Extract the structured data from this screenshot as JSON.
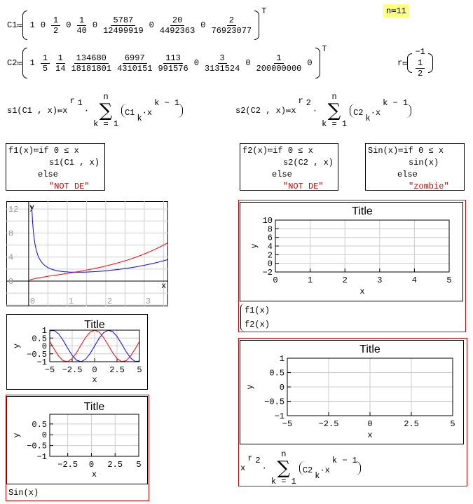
{
  "assign": "≔",
  "n_def": {
    "name": "n",
    "value": "11"
  },
  "c1": {
    "name": "C1",
    "transpose": "T",
    "entries": [
      "1",
      "0",
      {
        "num": "1",
        "den": "2"
      },
      "0",
      {
        "num": "1",
        "den": "40"
      },
      "0",
      {
        "num": "5787",
        "den": "12499919"
      },
      "0",
      {
        "num": "20",
        "den": "4492363"
      },
      "0",
      {
        "num": "2",
        "den": "76923077"
      }
    ]
  },
  "c2": {
    "name": "C2",
    "transpose": "T",
    "entries": [
      "1",
      {
        "num": "1",
        "den": "5"
      },
      {
        "num": "1",
        "den": "14"
      },
      {
        "num": "134680",
        "den": "18181801"
      },
      {
        "num": "6997",
        "den": "4310151"
      },
      {
        "num": "113",
        "den": "991576"
      },
      "0",
      {
        "num": "3",
        "den": "3131524"
      },
      "0",
      {
        "num": "1",
        "den": "200000000"
      },
      "0"
    ]
  },
  "r": {
    "name": "r",
    "entries": [
      "−1",
      {
        "num": "1",
        "den": "2"
      }
    ]
  },
  "s1": {
    "lhs": "s1(C1 , x)",
    "base": "x",
    "exp_var": "r",
    "exp_idx": "1",
    "dot": "·",
    "sum_top": "n",
    "sum_bottom": "k = 1",
    "term_var": "C1",
    "term_idx": "k",
    "term_base": "x",
    "term_exp": "k − 1"
  },
  "s2": {
    "lhs": "s2(C2 , x)",
    "base": "x",
    "exp_var": "r",
    "exp_idx": "2",
    "dot": "·",
    "sum_top": "n",
    "sum_bottom": "k = 1",
    "term_var": "C2",
    "term_idx": "k",
    "term_base": "x",
    "term_exp": "k − 1"
  },
  "expr_result": {
    "base": "x",
    "exp_var": "r",
    "exp_idx": "2",
    "dot": "·",
    "sum_top": "n",
    "sum_bottom": "k = 1",
    "term_var": "C2",
    "term_idx": "k",
    "term_base": "x",
    "term_exp": "k − 1"
  },
  "f1": {
    "lhs": "f1(x)",
    "keyword": "if",
    "cond": "0 ≤ x",
    "value": "s1(C1 , x)",
    "else": "else",
    "alt": "\"NOT DE\""
  },
  "f2": {
    "lhs": "f2(x)",
    "keyword": "if",
    "cond": "0 ≤ x",
    "value": "s2(C2 , x)",
    "else": "else",
    "alt": "\"NOT DE\""
  },
  "sinfn": {
    "lhs": "Sin(x)",
    "keyword": "if",
    "cond": "0 ≤ x",
    "value": "sin(x)",
    "else": "else",
    "alt": "\"zombie\""
  },
  "plot4_legend": [
    "f1(x)",
    "f2(x)"
  ],
  "plot3_expr": "Sin(x)",
  "chart_data": [
    {
      "type": "line",
      "xlabel": "x",
      "ylabel": "y",
      "xlim": [
        -0.58,
        3.62
      ],
      "ylim": [
        -4.2,
        13.3
      ],
      "xticks": [
        "0",
        "1",
        "2",
        "3"
      ],
      "yticks": [
        "0",
        "4",
        "8",
        "12"
      ],
      "grid": true,
      "series": [
        {
          "color": "#0000ff",
          "defined_by": "f1"
        },
        {
          "color": "#ff0000",
          "defined_by": "f2"
        }
      ]
    },
    {
      "type": "line",
      "title": "Title",
      "xlabel": "x",
      "ylabel": "y",
      "xlim": [
        -5,
        5
      ],
      "ylim": [
        -1,
        1
      ],
      "xticks": [
        "−5",
        "−2.5",
        "0",
        "2.5",
        "5"
      ],
      "yticks": [
        "1",
        "0.5",
        "0",
        "−0.5",
        "−1"
      ],
      "grid": true,
      "x": [
        -5,
        -4.5,
        -4,
        -3.5,
        -3,
        -2.5,
        -2,
        -1.5,
        -1,
        -0.5,
        0,
        0.5,
        1,
        1.5,
        2,
        2.5,
        3,
        3.5,
        4,
        4.5,
        5
      ],
      "series": [
        {
          "color": "#0000ff",
          "values": [
            0.959,
            0.978,
            0.757,
            0.351,
            -0.141,
            -0.598,
            -0.909,
            -0.997,
            -0.841,
            -0.479,
            0,
            0.479,
            0.841,
            0.997,
            0.909,
            0.598,
            0.141,
            -0.351,
            -0.757,
            -0.978,
            -0.959
          ]
        },
        {
          "color": "#ff0000",
          "values": [
            0.284,
            -0.211,
            -0.654,
            -0.936,
            -0.99,
            -0.801,
            -0.416,
            0.071,
            0.54,
            0.878,
            1,
            0.878,
            0.54,
            0.071,
            -0.416,
            -0.801,
            -0.99,
            -0.936,
            -0.654,
            -0.211,
            0.284
          ]
        }
      ]
    },
    {
      "type": "line",
      "title": "Title",
      "xlabel": "x",
      "ylabel": "y",
      "xlim": [
        -4.4,
        5
      ],
      "ylim": [
        -1,
        0.95
      ],
      "xticks": [
        "−2.5",
        "0",
        "2.5",
        "5"
      ],
      "yticks": [
        "0.5",
        "0",
        "−0.5",
        "−1"
      ],
      "grid": true,
      "series": []
    },
    {
      "type": "line",
      "title": "Title",
      "xlabel": "x",
      "ylabel": "y",
      "xlim": [
        0,
        5
      ],
      "ylim": [
        -2,
        10
      ],
      "xticks": [
        "0",
        "1",
        "2",
        "3",
        "4",
        "5"
      ],
      "yticks": [
        "10",
        "8",
        "6",
        "4",
        "2",
        "0",
        "−2"
      ],
      "grid": true,
      "series": []
    },
    {
      "type": "line",
      "title": "Title",
      "xlabel": "x",
      "ylabel": "y",
      "xlim": [
        -5,
        5
      ],
      "ylim": [
        -1,
        1
      ],
      "xticks": [
        "−5",
        "−2.5",
        "0",
        "2.5",
        "5"
      ],
      "yticks": [
        "1",
        "0.5",
        "0",
        "−0.5",
        "−1"
      ],
      "grid": true,
      "series": []
    }
  ]
}
